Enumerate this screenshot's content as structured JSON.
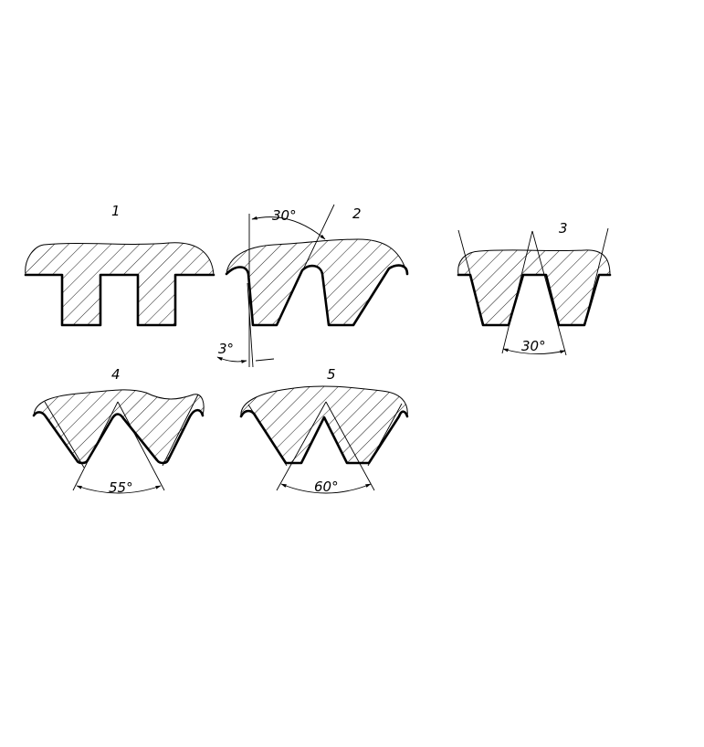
{
  "profiles": [
    {
      "number": "1"
    },
    {
      "number": "2",
      "angle_main": "30°",
      "angle_flank": "3°"
    },
    {
      "number": "3",
      "angle": "30°"
    },
    {
      "number": "4",
      "angle": "55°"
    },
    {
      "number": "5",
      "angle": "60°"
    }
  ]
}
